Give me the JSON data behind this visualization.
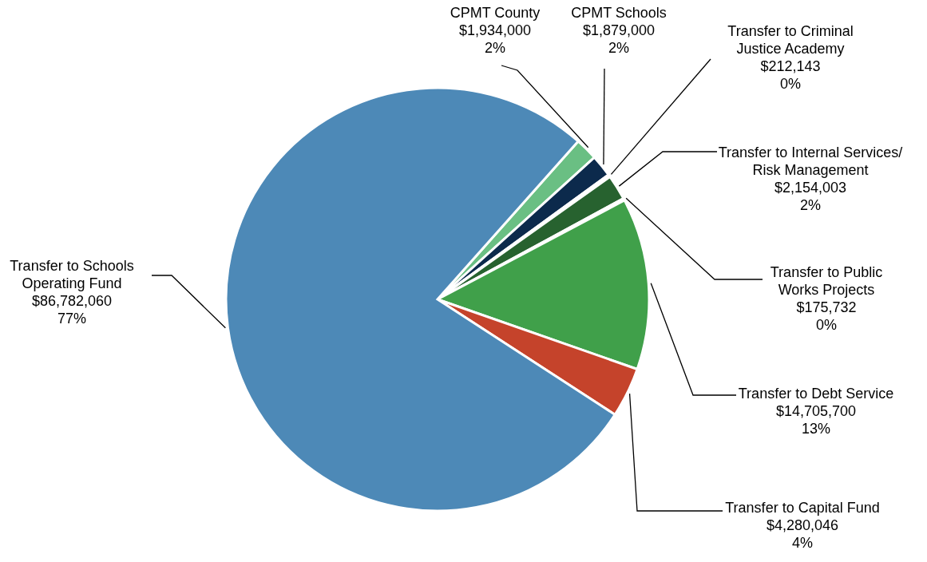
{
  "chart_data": {
    "type": "pie",
    "categories": [
      "CPMT County",
      "CPMT Schools",
      "Transfer to Criminal\nJustice Academy",
      "Transfer to Internal Services/\nRisk Management",
      "Transfer to Public\nWorks Projects",
      "Transfer to Debt Service",
      "Transfer to Capital Fund",
      "Transfer to Schools\nOperating Fund"
    ],
    "values": [
      1934000,
      1879000,
      212143,
      2154003,
      175732,
      14705700,
      4280046,
      86782060
    ],
    "value_labels": [
      "$1,934,000\n2%",
      "$1,879,000\n2%",
      "$212,143\n0%",
      "$2,154,003\n2%",
      "$175,732\n0%",
      "$14,705,700\n13%",
      "$4,280,046\n4%",
      "$86,782,060\n77%"
    ],
    "colors": [
      "#6abf83",
      "#0c2a4c",
      "#ffffff",
      "#27622f",
      "#ffffff",
      "#40a04a",
      "#c5432b",
      "#4d89b7"
    ]
  }
}
